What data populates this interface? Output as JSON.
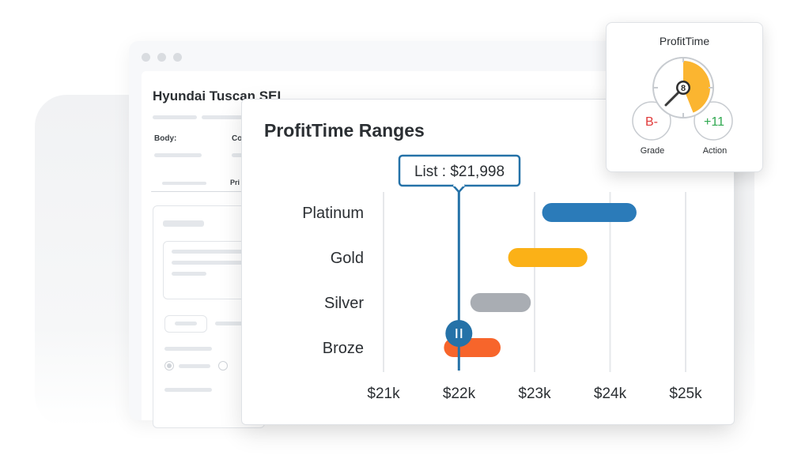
{
  "background_page": {
    "car_title": "Hyundai Tuscan SEL",
    "body_label": "Body:",
    "co_label": "Co",
    "pri_label": "Pri"
  },
  "profit_time": {
    "title": "ProfitTime",
    "score": "8",
    "score_fraction": 0.8,
    "grade_value": "B-",
    "grade_label": "Grade",
    "action_value": "+11",
    "action_label": "Action",
    "colors": {
      "gauge": "#fbb530",
      "grade": "#e03a3a",
      "action": "#2fa84f"
    }
  },
  "chart_data": {
    "type": "range-bar",
    "title": "ProfitTime Ranges",
    "categories": [
      "Platinum",
      "Gold",
      "Silver",
      "Broze"
    ],
    "ranges": [
      {
        "name": "Platinum",
        "start": 23100,
        "end": 24350,
        "color": "#2b7bb9"
      },
      {
        "name": "Gold",
        "start": 22650,
        "end": 23700,
        "color": "#fbb117"
      },
      {
        "name": "Silver",
        "start": 22150,
        "end": 22950,
        "color": "#a9adb3"
      },
      {
        "name": "Broze",
        "start": 21800,
        "end": 22550,
        "color": "#f7652b"
      }
    ],
    "x_ticks": [
      {
        "value": 21000,
        "label": "$21k"
      },
      {
        "value": 22000,
        "label": "$22k"
      },
      {
        "value": 23000,
        "label": "$23k"
      },
      {
        "value": 24000,
        "label": "$24k"
      },
      {
        "value": 25000,
        "label": "$25k"
      }
    ],
    "xlim": [
      21000,
      25000
    ],
    "grid": true,
    "marker": {
      "value": 21998,
      "label": "List : $21,998",
      "color": "#2572a8"
    }
  }
}
